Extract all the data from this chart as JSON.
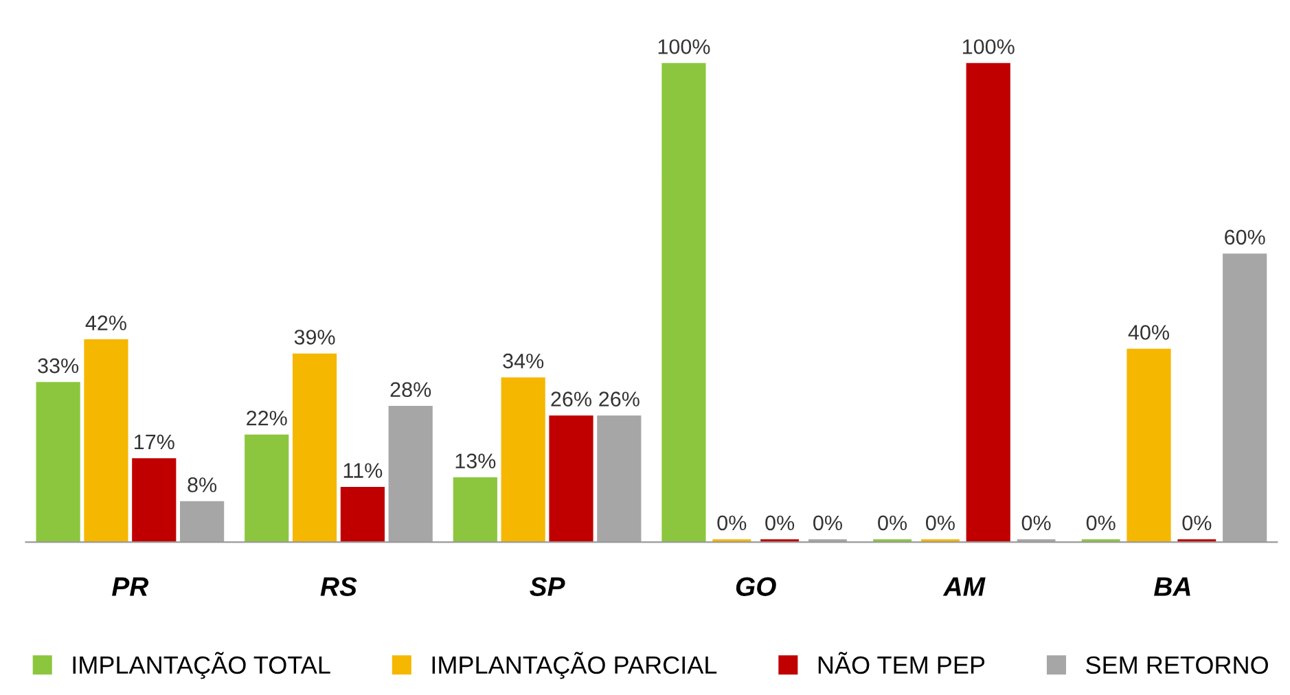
{
  "chart_data": {
    "type": "bar",
    "categories": [
      "PR",
      "RS",
      "SP",
      "GO",
      "AM",
      "BA"
    ],
    "series": [
      {
        "name": "IMPLANTAÇÃO TOTAL",
        "color": "#8cc63e",
        "values": [
          33,
          22,
          13,
          100,
          0,
          0
        ],
        "value_labels": [
          "33%",
          "22%",
          "13%",
          "100%",
          "0%",
          "0%"
        ]
      },
      {
        "name": "IMPLANTAÇÃO PARCIAL",
        "color": "#f5b700",
        "values": [
          42,
          39,
          34,
          0,
          0,
          40
        ],
        "value_labels": [
          "42%",
          "39%",
          "34%",
          "0%",
          "0%",
          "40%"
        ]
      },
      {
        "name": "NÃO TEM PEP",
        "color": "#c00000",
        "values": [
          17,
          11,
          26,
          0,
          100,
          0
        ],
        "value_labels": [
          "17%",
          "11%",
          "26%",
          "0%",
          "100%",
          "0%"
        ]
      },
      {
        "name": "SEM RETORNO",
        "color": "#a6a6a6",
        "values": [
          8,
          28,
          26,
          0,
          0,
          60
        ],
        "value_labels": [
          "8%",
          "28%",
          "26%",
          "0%",
          "0%",
          "60%"
        ]
      }
    ],
    "legend": "bottom",
    "grid": false
  }
}
